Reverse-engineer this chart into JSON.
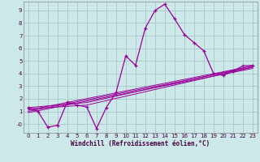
{
  "background_color": "#cce8e8",
  "grid_color": "#aacccc",
  "line_color": "#990099",
  "xlabel": "Windchill (Refroidissement éolien,°C)",
  "xlim": [
    -0.5,
    23.5
  ],
  "ylim": [
    -0.7,
    9.7
  ],
  "xticks": [
    0,
    1,
    2,
    3,
    4,
    5,
    6,
    7,
    8,
    9,
    10,
    11,
    12,
    13,
    14,
    15,
    16,
    17,
    18,
    19,
    20,
    21,
    22,
    23
  ],
  "yticks": [
    0,
    1,
    2,
    3,
    4,
    5,
    6,
    7,
    8,
    9
  ],
  "ytick_labels": [
    "-0",
    "1",
    "2",
    "3",
    "4",
    "5",
    "6",
    "7",
    "8",
    "9"
  ],
  "main_series": {
    "x": [
      0,
      1,
      2,
      3,
      4,
      5,
      6,
      7,
      8,
      9,
      10,
      11,
      12,
      13,
      14,
      15,
      16,
      17,
      18,
      19,
      20,
      21,
      22,
      23
    ],
    "y": [
      1.3,
      1.0,
      -0.25,
      -0.1,
      1.75,
      1.5,
      1.35,
      -0.35,
      1.3,
      2.5,
      5.4,
      4.65,
      7.6,
      9.0,
      9.5,
      8.35,
      7.1,
      6.45,
      5.8,
      4.0,
      3.85,
      4.2,
      4.6,
      4.65
    ]
  },
  "regression_lines": [
    {
      "x": [
        0,
        23
      ],
      "y": [
        1.0,
        4.5
      ]
    },
    {
      "x": [
        0,
        23
      ],
      "y": [
        1.1,
        4.6
      ]
    },
    {
      "x": [
        0,
        23
      ],
      "y": [
        0.9,
        4.4
      ]
    },
    {
      "x": [
        0,
        6,
        23
      ],
      "y": [
        1.3,
        1.7,
        4.6
      ]
    },
    {
      "x": [
        0,
        6,
        23
      ],
      "y": [
        1.2,
        1.5,
        4.5
      ]
    }
  ]
}
